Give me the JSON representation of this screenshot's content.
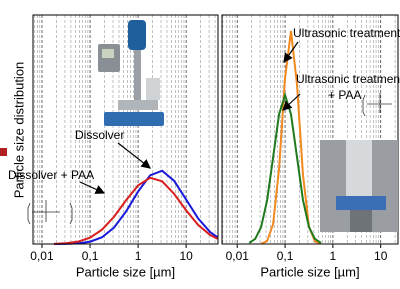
{
  "chart_data": [
    {
      "type": "line",
      "ylabel": "Particle size distribution",
      "xlabel": "Particle size [µm]",
      "xscale": "log",
      "grid": true,
      "xlim": [
        0.0065,
        46
      ],
      "ylim": [
        0,
        100
      ],
      "xticks": [
        {
          "value": 0.01,
          "label": "0,01"
        },
        {
          "value": 0.1,
          "label": "0,1"
        },
        1,
        10
      ],
      "minor_xticks": [
        0.007,
        0.008,
        0.009,
        0.02,
        0.03,
        0.04,
        0.05,
        0.06,
        0.07,
        0.08,
        0.09,
        0.2,
        0.3,
        0.4,
        0.5,
        0.6,
        0.7,
        0.8,
        0.9,
        2,
        3,
        4,
        5,
        6,
        7,
        8,
        9,
        20,
        30,
        40
      ],
      "x": [
        0.0178,
        0.0316,
        0.0562,
        0.1,
        0.178,
        0.316,
        0.562,
        1,
        1.78,
        3.16,
        5.62,
        10,
        17.8,
        31.6,
        44.7
      ],
      "series": [
        {
          "name": "Dissolver",
          "color": "#1a1adb",
          "values": [
            0.01,
            0.06,
            0.27,
            0.99,
            2.96,
            7.2,
            14.2,
            22.9,
            30.0,
            32,
            27.6,
            19.4,
            11.1,
            5.2,
            3.0
          ]
        },
        {
          "name": "Dissolver + PAA",
          "color": "#d81e1e",
          "values": [
            0.08,
            0.32,
            1.03,
            2.77,
            6.3,
            11.9,
            19.1,
            25.6,
            28.9,
            27.4,
            21.9,
            14.7,
            8.3,
            3.9,
            2.3
          ]
        }
      ]
    },
    {
      "type": "line",
      "xlabel": "Particle size [µm]",
      "xscale": "log",
      "grid": true,
      "xlim": [
        0.0048,
        23
      ],
      "ylim": [
        0,
        100
      ],
      "xticks": [
        {
          "value": 0.01,
          "label": "0,01"
        },
        {
          "value": 0.1,
          "label": "0,1"
        },
        1,
        10
      ],
      "minor_xticks": [
        0.005,
        0.006,
        0.007,
        0.008,
        0.009,
        0.02,
        0.03,
        0.04,
        0.05,
        0.06,
        0.07,
        0.08,
        0.09,
        0.2,
        0.3,
        0.4,
        0.5,
        0.6,
        0.7,
        0.8,
        0.9,
        2,
        3,
        4,
        5,
        6,
        7,
        8,
        9,
        20
      ],
      "series": [
        {
          "name": [
            "Ultrasonic treatment"
          ],
          "color": "#f0891e",
          "x": [
            0.0316,
            0.0422,
            0.0562,
            0.075,
            0.1,
            0.133,
            0.178,
            0.237,
            0.316,
            0.422,
            0.562
          ],
          "values": [
            0.12,
            1.3,
            8.7,
            32.9,
            72.5,
            93,
            69.5,
            30.2,
            7.6,
            1.1,
            0.1
          ]
        },
        {
          "name": [
            "Ultrasonic treatment",
            "+ PAA"
          ],
          "color": "#1f7a1f",
          "x": [
            0.0178,
            0.0237,
            0.0316,
            0.0422,
            0.0562,
            0.075,
            0.1,
            0.133,
            0.178,
            0.237,
            0.316,
            0.422,
            0.562
          ],
          "values": [
            0.5,
            2.2,
            7.4,
            19.2,
            37.8,
            56.7,
            65,
            56.7,
            37.8,
            19.2,
            7.4,
            2.2,
            0.5
          ]
        }
      ]
    }
  ]
}
